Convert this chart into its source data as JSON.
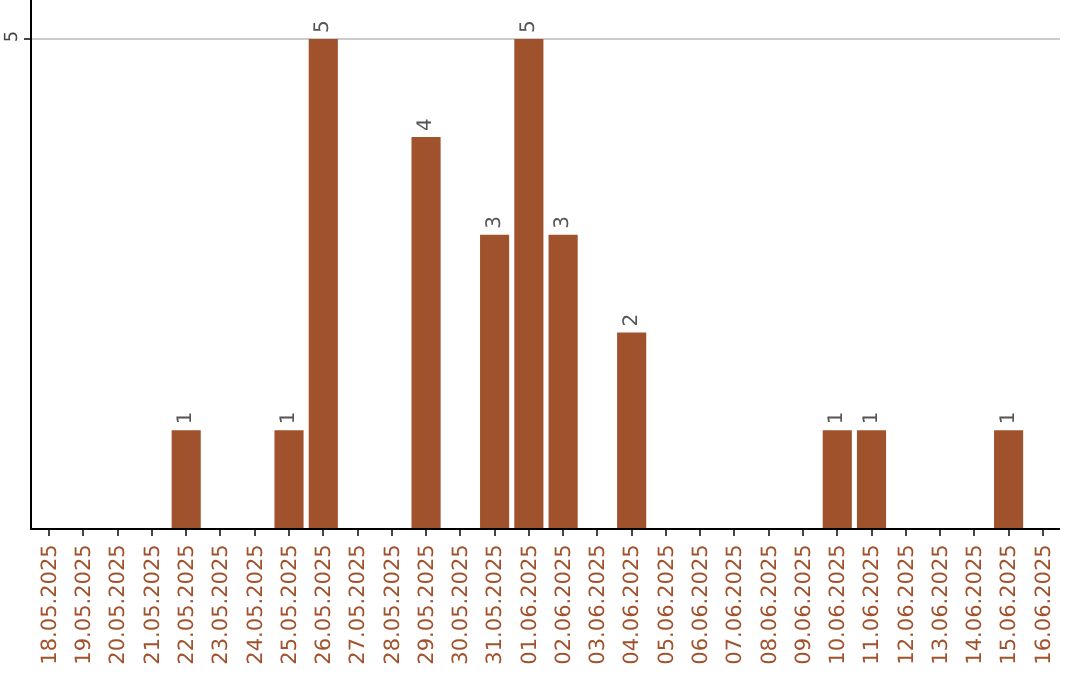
{
  "chart_data": {
    "type": "bar",
    "categories": [
      "18.05.2025",
      "19.05.2025",
      "20.05.2025",
      "21.05.2025",
      "22.05.2025",
      "23.05.2025",
      "24.05.2025",
      "25.05.2025",
      "26.05.2025",
      "27.05.2025",
      "28.05.2025",
      "29.05.2025",
      "30.05.2025",
      "31.05.2025",
      "01.06.2025",
      "02.06.2025",
      "03.06.2025",
      "04.06.2025",
      "05.06.2025",
      "06.06.2025",
      "07.06.2025",
      "08.06.2025",
      "09.06.2025",
      "10.06.2025",
      "11.06.2025",
      "12.06.2025",
      "13.06.2025",
      "14.06.2025",
      "15.06.2025",
      "16.06.2025"
    ],
    "values": [
      0,
      0,
      0,
      0,
      1,
      0,
      0,
      1,
      5,
      0,
      0,
      4,
      0,
      3,
      5,
      3,
      0,
      2,
      0,
      0,
      0,
      0,
      0,
      1,
      1,
      0,
      0,
      0,
      1,
      0
    ],
    "value_labels": [
      null,
      null,
      null,
      null,
      "1",
      null,
      null,
      "1",
      "5",
      null,
      null,
      "4",
      null,
      "3",
      "5",
      "3",
      null,
      "2",
      null,
      null,
      null,
      null,
      null,
      "1",
      "1",
      null,
      null,
      null,
      "1",
      null
    ],
    "color": "#a0522d",
    "ylim": [
      0,
      5.4
    ],
    "yticks": [
      5
    ],
    "grid": "y"
  }
}
